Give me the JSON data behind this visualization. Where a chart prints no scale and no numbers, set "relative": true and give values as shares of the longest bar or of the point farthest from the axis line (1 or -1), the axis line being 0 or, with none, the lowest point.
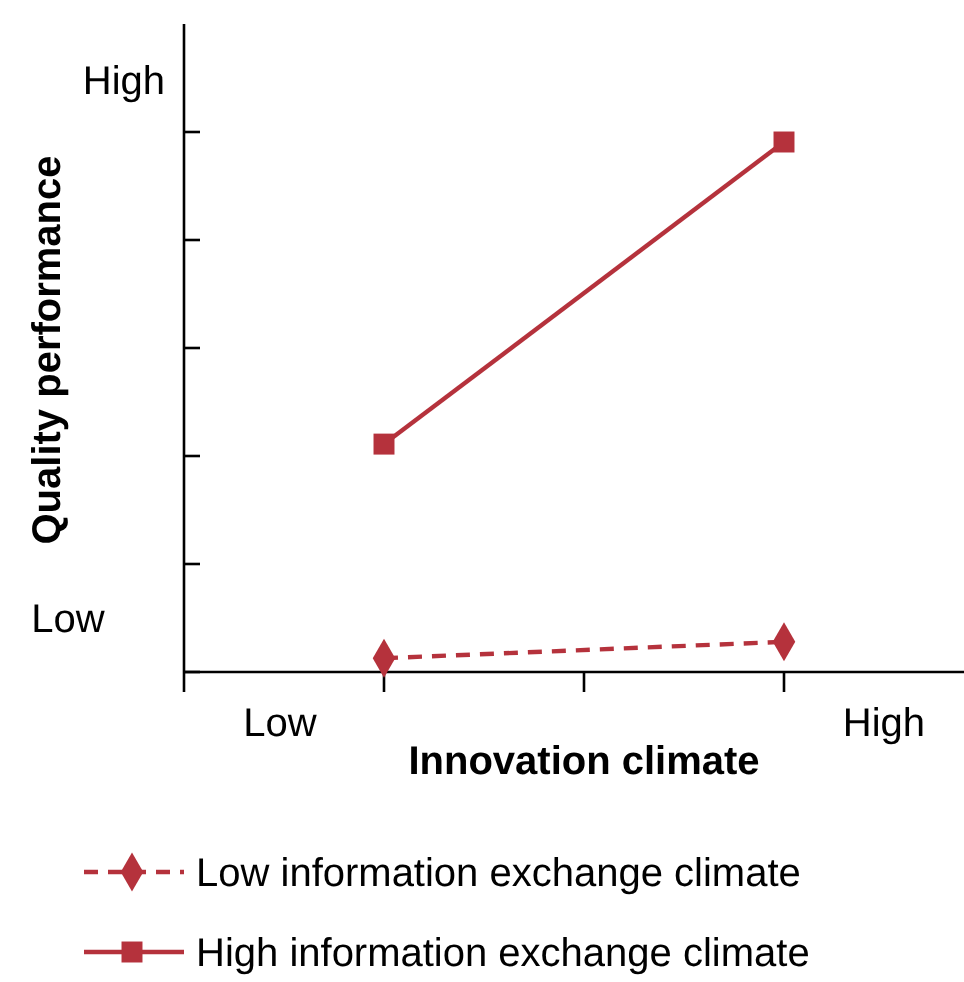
{
  "chart_data": {
    "type": "line",
    "relative": true,
    "xlabel": "Innovation climate",
    "ylabel": "Quality performance",
    "categories": [
      null,
      null
    ],
    "series": [
      {
        "name": "Low information exchange climate",
        "color": "#b5323c",
        "values": [
          0.026,
          0.057
        ],
        "marker": "diamond",
        "line_style": "dashed"
      },
      {
        "name": "High information exchange climate",
        "color": "#b5323c",
        "values": [
          0.43,
          1
        ],
        "marker": "square",
        "line_style": "solid"
      }
    ],
    "annotations": [
      "Low",
      "High",
      "Low",
      "High"
    ],
    "legend": "bottom"
  }
}
